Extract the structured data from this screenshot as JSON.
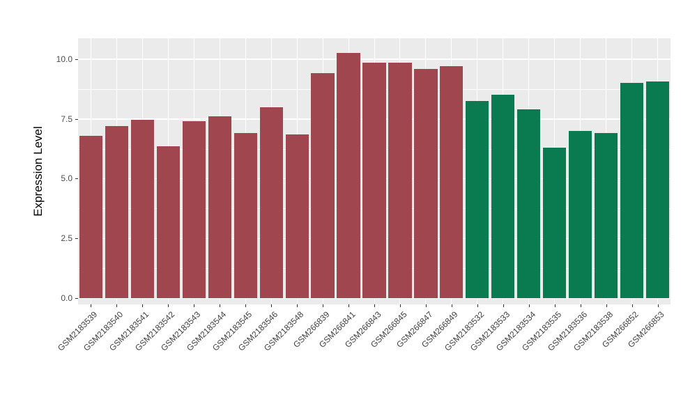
{
  "chart_data": {
    "type": "bar",
    "title": "",
    "xlabel": "",
    "ylabel": "Expression Level",
    "ylim": [
      0,
      10.87
    ],
    "yticks": [
      0.0,
      2.5,
      5.0,
      7.5,
      10.0
    ],
    "ytick_labels": [
      "0.0",
      "2.5",
      "5.0",
      "7.5",
      "10.0"
    ],
    "minor_gridlines": [
      1.25,
      3.75,
      6.25,
      8.75
    ],
    "grid": "on",
    "legend_position": "none",
    "categories": [
      "GSM2183539",
      "GSM2183540",
      "GSM2183541",
      "GSM2183542",
      "GSM2183543",
      "GSM2183544",
      "GSM2183545",
      "GSM2183546",
      "GSM2183548",
      "GSM266839",
      "GSM266841",
      "GSM266843",
      "GSM266845",
      "GSM266847",
      "GSM266849",
      "GSM2183532",
      "GSM2183533",
      "GSM2183534",
      "GSM2183535",
      "GSM2183536",
      "GSM2183538",
      "GSM266852",
      "GSM266853"
    ],
    "values": [
      6.8,
      7.2,
      7.45,
      6.35,
      7.4,
      7.6,
      6.9,
      8.0,
      6.85,
      9.4,
      10.25,
      9.85,
      9.85,
      9.6,
      9.7,
      8.25,
      8.5,
      7.9,
      6.3,
      7.0,
      6.9,
      9.0,
      9.05
    ],
    "bar_groups": [
      0,
      0,
      0,
      0,
      0,
      0,
      0,
      0,
      0,
      0,
      0,
      0,
      0,
      0,
      0,
      1,
      1,
      1,
      1,
      1,
      1,
      1,
      1
    ],
    "group_colors": [
      "#A0464F",
      "#0A7B50"
    ],
    "colors": {
      "panel_background": "#EBEBEB",
      "gridline": "#FFFFFF",
      "axis_text": "#4D4D4D",
      "tick_mark": "#333333"
    }
  }
}
